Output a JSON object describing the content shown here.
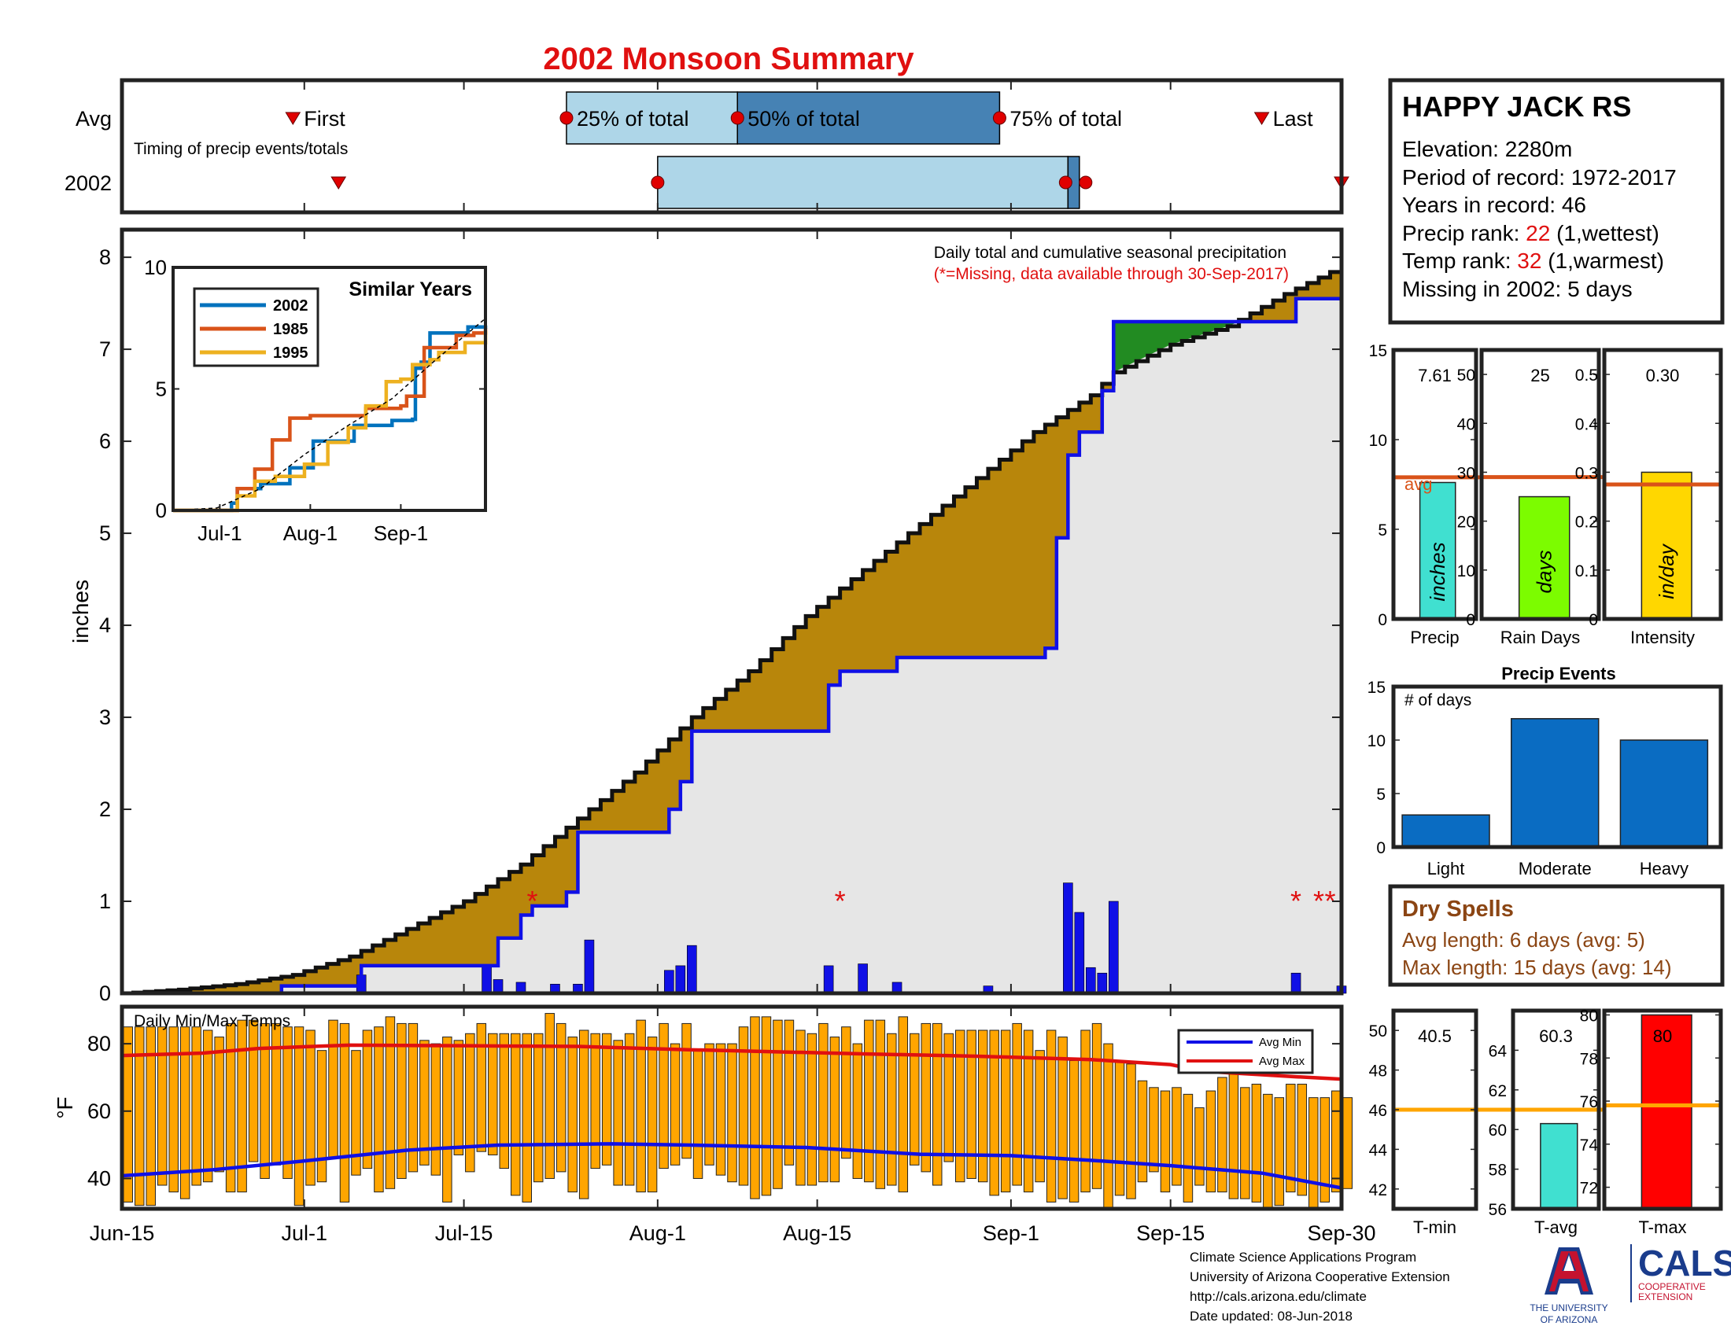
{
  "title": "2002 Monsoon Summary",
  "timing": {
    "row_labels": [
      "Avg",
      "2002"
    ],
    "note": "Timing of precip events/totals",
    "first_label": "First",
    "last_label": "Last",
    "q25_label": "25% of total",
    "q50_label": "50% of total",
    "q75_label": "75% of total",
    "avg": {
      "first": "2017-06-30",
      "p25": "2017-07-24",
      "p50": "2017-08-08",
      "p75": "2017-08-31",
      "last": "2017-09-23"
    },
    "y2002": {
      "first": "2017-07-04",
      "p25": "2017-08-01",
      "p50": "2017-09-06",
      "p75": "2017-09-07",
      "last": "2017-09-30"
    }
  },
  "station": {
    "name": "HAPPY JACK RS",
    "elevation_text": "Elevation: 2280m",
    "period_text": "Period of record: 1972-2017",
    "years_text": "Years in record: 46",
    "precip_rank_label": "Precip rank: ",
    "precip_rank_value": "22",
    "precip_rank_note": " (1,wettest)",
    "temp_rank_label": "Temp rank: ",
    "temp_rank_value": "32",
    "temp_rank_note": " (1,warmest)",
    "missing_text": "Missing in 2002: 5 days"
  },
  "colors": {
    "accent_red": "#e01010",
    "cumulative_fill": "#b8860b",
    "above_fill": "#228b22",
    "series_line": "#1010e6",
    "daily_bar": "#1010e6",
    "temp_bar": "#ffa500",
    "avg_max": "#e01010",
    "avg_min": "#1010e6",
    "precip_bar": "#40e0d0",
    "rain_days_bar": "#7cfc00",
    "intensity_bar": "#ffd700",
    "events_bar": "#0a6cc2",
    "tavg_bar": "#40e0d0",
    "tmax_bar": "#ff0000",
    "timing_light": "#aed6e8",
    "timing_dark": "#4682b4",
    "dry_spell_text": "#8b4513"
  },
  "chart_data": [
    {
      "type": "area",
      "name": "cumulative_precip",
      "title": "Daily total and cumulative seasonal precipitation",
      "subtitle": "(*=Missing, data available through 30-Sep-2017)",
      "ylabel": "inches",
      "ylim": [
        0,
        8.3
      ],
      "yticks": [
        0,
        1,
        2,
        3,
        4,
        5,
        6,
        7,
        8
      ],
      "xlim": [
        "2017-06-15",
        "2017-09-30"
      ],
      "xtick_labels": [
        {
          "date": "2017-06-15",
          "label": "Jun-15"
        },
        {
          "date": "2017-07-01",
          "label": "Jul-1"
        },
        {
          "date": "2017-07-15",
          "label": "Jul-15"
        },
        {
          "date": "2017-08-01",
          "label": "Aug-1"
        },
        {
          "date": "2017-08-15",
          "label": "Aug-15"
        },
        {
          "date": "2017-09-01",
          "label": "Sep-1"
        },
        {
          "date": "2017-09-15",
          "label": "Sep-15"
        },
        {
          "date": "2017-09-30",
          "label": "Sep-30"
        }
      ],
      "avg_cumulative": [
        [
          "2017-06-15",
          0.0
        ],
        [
          "2017-06-20",
          0.04
        ],
        [
          "2017-06-25",
          0.1
        ],
        [
          "2017-06-30",
          0.2
        ],
        [
          "2017-07-05",
          0.4
        ],
        [
          "2017-07-10",
          0.7
        ],
        [
          "2017-07-15",
          1.0
        ],
        [
          "2017-07-20",
          1.4
        ],
        [
          "2017-07-25",
          1.9
        ],
        [
          "2017-07-30",
          2.4
        ],
        [
          "2017-08-04",
          3.0
        ],
        [
          "2017-08-09",
          3.5
        ],
        [
          "2017-08-14",
          4.1
        ],
        [
          "2017-08-19",
          4.6
        ],
        [
          "2017-08-24",
          5.1
        ],
        [
          "2017-08-29",
          5.6
        ],
        [
          "2017-09-03",
          6.1
        ],
        [
          "2017-09-08",
          6.5
        ],
        [
          "2017-09-10",
          6.75
        ],
        [
          "2017-09-15",
          7.05
        ],
        [
          "2017-09-20",
          7.25
        ],
        [
          "2017-09-25",
          7.6
        ],
        [
          "2017-09-30",
          7.9
        ]
      ],
      "y2002_cumulative": [
        [
          "2017-06-15",
          0.0
        ],
        [
          "2017-06-26",
          0.0
        ],
        [
          "2017-06-29",
          0.08
        ],
        [
          "2017-07-03",
          0.08
        ],
        [
          "2017-07-06",
          0.3
        ],
        [
          "2017-07-18",
          0.6
        ],
        [
          "2017-07-20",
          0.85
        ],
        [
          "2017-07-21",
          0.95
        ],
        [
          "2017-07-24",
          1.1
        ],
        [
          "2017-07-25",
          1.75
        ],
        [
          "2017-08-02",
          2.0
        ],
        [
          "2017-08-03",
          2.3
        ],
        [
          "2017-08-04",
          2.85
        ],
        [
          "2017-08-15",
          2.85
        ],
        [
          "2017-08-16",
          3.35
        ],
        [
          "2017-08-17",
          3.5
        ],
        [
          "2017-08-22",
          3.65
        ],
        [
          "2017-08-29",
          3.65
        ],
        [
          "2017-09-04",
          3.75
        ],
        [
          "2017-09-05",
          4.95
        ],
        [
          "2017-09-06",
          5.85
        ],
        [
          "2017-09-07",
          6.1
        ],
        [
          "2017-09-09",
          6.55
        ],
        [
          "2017-09-10",
          7.3
        ],
        [
          "2017-09-25",
          7.3
        ],
        [
          "2017-09-26",
          7.55
        ],
        [
          "2017-09-30",
          7.61
        ]
      ],
      "daily_precip": [
        [
          "2017-07-06",
          0.2
        ],
        [
          "2017-07-17",
          0.3
        ],
        [
          "2017-07-18",
          0.15
        ],
        [
          "2017-07-20",
          0.12
        ],
        [
          "2017-07-23",
          0.1
        ],
        [
          "2017-07-25",
          0.1
        ],
        [
          "2017-07-26",
          0.58
        ],
        [
          "2017-08-02",
          0.25
        ],
        [
          "2017-08-03",
          0.3
        ],
        [
          "2017-08-04",
          0.52
        ],
        [
          "2017-08-16",
          0.3
        ],
        [
          "2017-08-19",
          0.32
        ],
        [
          "2017-08-22",
          0.12
        ],
        [
          "2017-08-30",
          0.08
        ],
        [
          "2017-09-06",
          1.2
        ],
        [
          "2017-09-07",
          0.88
        ],
        [
          "2017-09-08",
          0.28
        ],
        [
          "2017-09-09",
          0.22
        ],
        [
          "2017-09-10",
          1.0
        ],
        [
          "2017-09-26",
          0.22
        ],
        [
          "2017-09-30",
          0.08
        ]
      ],
      "missing_dates": [
        "2017-07-21",
        "2017-08-17",
        "2017-09-26",
        "2017-09-28",
        "2017-09-29"
      ]
    },
    {
      "type": "line",
      "name": "similar_years",
      "title": "Similar Years",
      "ylim": [
        0,
        10
      ],
      "yticks": [
        0,
        5,
        10
      ],
      "xtick_labels": [
        "Jul-1",
        "Aug-1",
        "Sep-1"
      ],
      "series": [
        {
          "name": "2002",
          "color": "#0072bd",
          "values": [
            [
              0,
              0
            ],
            [
              15,
              0
            ],
            [
              20,
              0.3
            ],
            [
              22,
              0.9
            ],
            [
              30,
              1.1
            ],
            [
              40,
              1.75
            ],
            [
              48,
              2.85
            ],
            [
              55,
              2.85
            ],
            [
              62,
              3.5
            ],
            [
              75,
              3.7
            ],
            [
              82,
              3.75
            ],
            [
              83,
              5.85
            ],
            [
              85,
              6.1
            ],
            [
              88,
              7.3
            ],
            [
              97,
              7.3
            ],
            [
              101,
              7.55
            ],
            [
              107,
              7.61
            ]
          ]
        },
        {
          "name": "1985",
          "color": "#d95319",
          "values": [
            [
              0,
              0
            ],
            [
              14,
              0
            ],
            [
              22,
              0.9
            ],
            [
              28,
              1.7
            ],
            [
              34,
              2.9
            ],
            [
              40,
              3.8
            ],
            [
              47,
              3.9
            ],
            [
              58,
              3.9
            ],
            [
              66,
              4.2
            ],
            [
              78,
              4.3
            ],
            [
              80,
              4.7
            ],
            [
              85,
              4.7
            ],
            [
              86,
              6.7
            ],
            [
              95,
              6.7
            ],
            [
              97,
              7.2
            ],
            [
              103,
              7.3
            ],
            [
              107,
              7.5
            ]
          ]
        },
        {
          "name": "1995",
          "color": "#edb120",
          "values": [
            [
              0,
              0
            ],
            [
              16,
              0
            ],
            [
              22,
              0.6
            ],
            [
              28,
              1.2
            ],
            [
              35,
              1.4
            ],
            [
              45,
              1.9
            ],
            [
              53,
              2.8
            ],
            [
              60,
              3.4
            ],
            [
              66,
              4.3
            ],
            [
              73,
              5.3
            ],
            [
              78,
              5.4
            ],
            [
              82,
              6.0
            ],
            [
              88,
              6.2
            ],
            [
              91,
              6.5
            ],
            [
              96,
              6.5
            ],
            [
              100,
              6.9
            ],
            [
              103,
              6.9
            ],
            [
              107,
              7.4
            ]
          ]
        },
        {
          "name": "avg",
          "color": "#000000",
          "values": [
            [
              0,
              0
            ],
            [
              15,
              0.1
            ],
            [
              30,
              0.9
            ],
            [
              45,
              2.3
            ],
            [
              60,
              3.5
            ],
            [
              75,
              4.6
            ],
            [
              90,
              6.2
            ],
            [
              107,
              7.9
            ]
          ]
        }
      ]
    },
    {
      "type": "bar",
      "name": "daily_temps",
      "title": "Daily Min/Max Temps",
      "ylabel": "°F",
      "ylim": [
        31,
        91
      ],
      "yticks": [
        40,
        60,
        80
      ],
      "legend": [
        "Avg Min",
        "Avg Max"
      ],
      "legend_position": "top-right",
      "avg_max": [
        [
          0,
          76.5
        ],
        [
          7,
          77.2
        ],
        [
          12,
          78.6
        ],
        [
          20,
          79.6
        ],
        [
          30,
          79.4
        ],
        [
          40,
          79.2
        ],
        [
          50,
          78.2
        ],
        [
          55,
          77.8
        ],
        [
          65,
          77.0
        ],
        [
          75,
          76.3
        ],
        [
          85,
          75.3
        ],
        [
          92,
          73.8
        ],
        [
          95,
          71.8
        ],
        [
          100,
          70.8
        ],
        [
          103,
          70.2
        ],
        [
          107,
          69.5
        ]
      ],
      "avg_min": [
        [
          0,
          40.8
        ],
        [
          8,
          42.6
        ],
        [
          16,
          45.2
        ],
        [
          25,
          48.4
        ],
        [
          33,
          49.9
        ],
        [
          43,
          50.3
        ],
        [
          50,
          49.9
        ],
        [
          60,
          49.2
        ],
        [
          70,
          47.2
        ],
        [
          78,
          46.8
        ],
        [
          85,
          45.4
        ],
        [
          92,
          43.8
        ],
        [
          100,
          41.6
        ],
        [
          107,
          37.2
        ]
      ],
      "daily_max": [
        85,
        85,
        85,
        85,
        85,
        85,
        85,
        84,
        82,
        86,
        87,
        87,
        86,
        86,
        85,
        85,
        84,
        78,
        87,
        86,
        78,
        84,
        85,
        88,
        86,
        86,
        81,
        80,
        82,
        81,
        83,
        86,
        83,
        83,
        83,
        83,
        83,
        89,
        86,
        82,
        84,
        83,
        83,
        81,
        83,
        87,
        82,
        86,
        80,
        86,
        78,
        80,
        80,
        80,
        85,
        88,
        88,
        87,
        87,
        84,
        83,
        86,
        82,
        85,
        80,
        87,
        87,
        83,
        88,
        83,
        86,
        86,
        83,
        84,
        84,
        84,
        84,
        84,
        86,
        84,
        78,
        84,
        82,
        75,
        84,
        86,
        80,
        75,
        74,
        69,
        67,
        66,
        67,
        65,
        61,
        66,
        70,
        71,
        67,
        68,
        65,
        64,
        68,
        68,
        64,
        64,
        66,
        64
      ],
      "daily_min": [
        33,
        32,
        32,
        38,
        36,
        34,
        38,
        39,
        42,
        36,
        36,
        45,
        40,
        44,
        40,
        32,
        38,
        39,
        46,
        33,
        41,
        43,
        36,
        37,
        40,
        42,
        44,
        41,
        33,
        47,
        42,
        48,
        47,
        43,
        35,
        33,
        39,
        40,
        42,
        36,
        34,
        43,
        44,
        38,
        38,
        36,
        36,
        43,
        44,
        46,
        40,
        44,
        41,
        39,
        38,
        34,
        35,
        37,
        44,
        38,
        38,
        39,
        39,
        46,
        40,
        39,
        37,
        38,
        36,
        44,
        42,
        38,
        45,
        39,
        40,
        39,
        35,
        36,
        38,
        36,
        39,
        33,
        34,
        33,
        36,
        37,
        31,
        35,
        34,
        39,
        42,
        36,
        38,
        33,
        38,
        36,
        36,
        34,
        34,
        33,
        31,
        32,
        36,
        35,
        29,
        33,
        36,
        37
      ]
    },
    {
      "type": "bar",
      "name": "precip_total",
      "xlabel": "Precip",
      "value": 7.61,
      "value_label": "7.61",
      "avg": 7.9,
      "avg_label": "avg",
      "unit_label": "inches",
      "ylim": [
        0,
        15
      ],
      "yticks": [
        0,
        5,
        10,
        15
      ]
    },
    {
      "type": "bar",
      "name": "rain_days",
      "xlabel": "Rain Days",
      "value": 25,
      "value_label": "25",
      "avg": 29,
      "unit_label": "days",
      "ylim": [
        0,
        55
      ],
      "yticks": [
        0,
        10,
        20,
        30,
        40,
        50
      ]
    },
    {
      "type": "bar",
      "name": "intensity",
      "xlabel": "Intensity",
      "value": 0.3,
      "value_label": "0.30",
      "avg": 0.275,
      "unit_label": "in/day",
      "ylim": [
        0,
        0.55
      ],
      "yticks": [
        0,
        0.1,
        0.2,
        0.3,
        0.4,
        0.5
      ]
    },
    {
      "type": "bar",
      "name": "precip_events",
      "title": "Precip Events",
      "ylabel": "# of days",
      "categories": [
        "Light",
        "Moderate",
        "Heavy"
      ],
      "values": [
        3,
        12,
        10
      ],
      "ylim": [
        0,
        15
      ],
      "yticks": [
        0,
        5,
        10,
        15
      ]
    },
    {
      "type": "bar",
      "name": "t_min",
      "xlabel": "T-min",
      "value": 40.5,
      "value_label": "40.5",
      "avg": 46.0,
      "ylim": [
        41,
        51
      ],
      "yticks": [
        42,
        44,
        46,
        48,
        50
      ]
    },
    {
      "type": "bar",
      "name": "t_avg",
      "xlabel": "T-avg",
      "value": 60.3,
      "value_label": "60.3",
      "avg": 61.0,
      "ylim": [
        56,
        66
      ],
      "yticks": [
        56,
        58,
        60,
        62,
        64
      ]
    },
    {
      "type": "bar",
      "name": "t_max",
      "xlabel": "T-max",
      "value": 80,
      "value_label": "80",
      "avg": 75.8,
      "ylim": [
        71,
        80.2
      ],
      "yticks": [
        72,
        74,
        76,
        78,
        80
      ]
    }
  ],
  "dry_spells": {
    "title": "Dry Spells",
    "avg_length": "Avg length: 6 days (avg: 5)",
    "max_length": "Max length: 15 days (avg: 14)"
  },
  "footer": {
    "lines": [
      "Climate Science Applications Program",
      "University of Arizona Cooperative Extension",
      "http://cals.arizona.edu/climate",
      " Date updated: 08-Jun-2018"
    ]
  },
  "logos": {
    "ua_caption_1": "THE UNIVERSITY",
    "ua_caption_2": "OF ARIZONA",
    "cals": "CALS",
    "coop_1": "COOPERATIVE",
    "coop_2": "EXTENSION"
  }
}
